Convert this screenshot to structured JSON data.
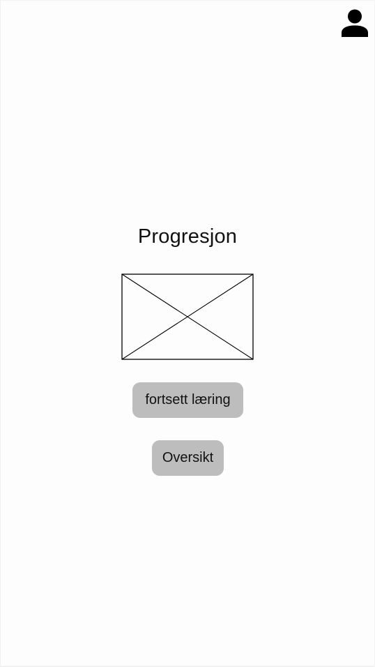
{
  "header": {
    "profile_icon": "user-icon"
  },
  "main": {
    "title": "Progresjon",
    "image_placeholder_icon": "image-placeholder-icon",
    "buttons": {
      "continue_label": "fortsett læring",
      "overview_label": "Oversikt"
    }
  },
  "colors": {
    "background": "#fdfdfd",
    "button": "#bdbdbd",
    "text": "#111111"
  }
}
